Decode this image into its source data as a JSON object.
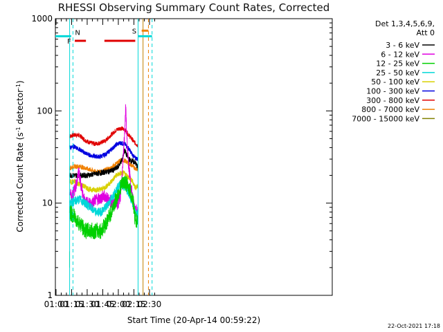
{
  "chart_data": {
    "type": "line",
    "title": "RHESSI Observing Summary Count Rates, Corrected",
    "xlabel": "Start Time (20-Apr-14 00:59:22)",
    "ylabel_parts": [
      "Corrected Count Rate (s",
      "-1",
      " detector",
      "-1",
      ")"
    ],
    "y_scale": "log",
    "ylim": [
      1,
      1000
    ],
    "y_ticks": [
      {
        "value": 1,
        "label": "1"
      },
      {
        "value": 10,
        "label": "10"
      },
      {
        "value": 100,
        "label": "100"
      },
      {
        "value": 1000,
        "label": "1000"
      }
    ],
    "xlim_minutes": [
      -0.6333,
      264.0
    ],
    "x_ticks": [
      {
        "minutes": 0,
        "label": "01:00"
      },
      {
        "minutes": 15,
        "label": "01:15"
      },
      {
        "minutes": 30,
        "label": "01:30"
      },
      {
        "minutes": 45,
        "label": "01:45"
      },
      {
        "minutes": 60,
        "label": "02:00"
      },
      {
        "minutes": 75,
        "label": "02:15"
      },
      {
        "minutes": 90,
        "label": "02:30"
      }
    ],
    "legend_header": [
      "Det 1,3,4,5,6,9,",
      "Att 0"
    ],
    "legend_position": "top-right outside plot",
    "series": [
      {
        "name": "3 - 6 keV",
        "color": "#000000",
        "x": [
          13,
          20,
          30,
          40,
          50,
          56,
          60,
          64,
          66,
          68,
          70,
          72,
          75,
          76,
          79
        ],
        "y": [
          20,
          20,
          20,
          21,
          22,
          23,
          25,
          30,
          38,
          33,
          30,
          29,
          28,
          28,
          24
        ]
      },
      {
        "name": "6 - 12 keV",
        "color": "#e000e0",
        "x": [
          13,
          15,
          18,
          20,
          22,
          24,
          26,
          28,
          30,
          34,
          38,
          42,
          46,
          50,
          55,
          60,
          62,
          64,
          66,
          67,
          68,
          69,
          70,
          72,
          74,
          76,
          79
        ],
        "y": [
          13,
          12,
          14,
          17,
          22,
          16,
          12,
          10,
          10,
          10,
          11,
          11,
          12,
          11,
          10,
          10,
          12,
          22,
          55,
          110,
          60,
          35,
          25,
          16,
          11,
          9,
          8
        ]
      },
      {
        "name": "12 - 25 keV",
        "color": "#00d000",
        "x": [
          13,
          18,
          23,
          28,
          33,
          38,
          43,
          48,
          53,
          58,
          62,
          66,
          70,
          74,
          76,
          79
        ],
        "y": [
          8,
          7,
          6,
          5,
          5,
          5,
          5,
          6,
          8,
          11,
          15,
          17,
          15,
          11,
          7,
          6
        ]
      },
      {
        "name": "25 - 50 keV",
        "color": "#00d8d8",
        "x": [
          13,
          18,
          23,
          28,
          33,
          38,
          43,
          48,
          53,
          58,
          62,
          66,
          70,
          74,
          76,
          79
        ],
        "y": [
          10,
          10.5,
          11,
          10,
          9,
          8,
          8,
          9,
          11,
          14,
          16,
          15,
          13,
          10,
          8,
          7.5
        ]
      },
      {
        "name": "50 - 100 keV",
        "color": "#d8d000",
        "x": [
          13,
          18,
          23,
          28,
          33,
          38,
          43,
          48,
          53,
          58,
          62,
          66,
          70,
          74,
          76,
          79
        ],
        "y": [
          17,
          17,
          16,
          15,
          14,
          14,
          14,
          15,
          17,
          20,
          21,
          21,
          19,
          17,
          15,
          15
        ]
      },
      {
        "name": "100 - 300 keV",
        "color": "#0000e0",
        "x": [
          13,
          18,
          23,
          28,
          33,
          38,
          43,
          48,
          53,
          58,
          62,
          66,
          70,
          74,
          76,
          79
        ],
        "y": [
          40,
          41,
          38,
          35,
          33,
          32,
          32,
          34,
          38,
          43,
          45,
          44,
          39,
          33,
          31,
          30
        ]
      },
      {
        "name": "300 - 800 keV",
        "color": "#e00000",
        "x": [
          13,
          18,
          23,
          28,
          33,
          38,
          43,
          48,
          53,
          58,
          62,
          66,
          70,
          74,
          76,
          79
        ],
        "y": [
          53,
          55,
          54,
          48,
          45,
          44,
          45,
          48,
          55,
          62,
          65,
          63,
          55,
          48,
          45,
          42
        ]
      },
      {
        "name": "800 - 7000 keV",
        "color": "#f08000",
        "x": [
          13,
          18,
          23,
          28,
          33,
          38,
          43,
          48,
          53,
          58,
          62,
          66,
          70,
          74,
          76,
          79
        ],
        "y": [
          24,
          25,
          25,
          24,
          23,
          22,
          22,
          23,
          24,
          27,
          29,
          29,
          27,
          25,
          24,
          23
        ]
      },
      {
        "name": "7000 - 15000 keV",
        "color": "#808000",
        "x": [],
        "y": []
      }
    ],
    "flag_labels": {
      "night": "N",
      "flare": "F",
      "saa": "S"
    },
    "flags": [
      {
        "type": "night",
        "label": "N",
        "color": "#00d8d8",
        "from": -0.6333,
        "to": 14.6,
        "log_level": 2.81
      },
      {
        "type": "night",
        "label": "N",
        "color": "#00d8d8",
        "from": 79.0,
        "to": 92.5,
        "log_level": 2.81
      },
      {
        "type": "flare",
        "label": "F",
        "color": "#e00000",
        "from": 18.1,
        "to": 28.8,
        "log_level": 2.76
      },
      {
        "type": "flare",
        "label": "F",
        "color": "#e00000",
        "from": 46.6,
        "to": 76.3,
        "log_level": 2.76
      },
      {
        "type": "saa",
        "label": "S",
        "color": "#f08000",
        "from": 82.5,
        "to": 89.0,
        "log_level": 2.87
      }
    ],
    "vlines": [
      {
        "minutes": 13.1,
        "color": "#00d8d8",
        "dash": false
      },
      {
        "minutes": 16.3,
        "color": "#00d8d8",
        "dash": true
      },
      {
        "minutes": 79.0,
        "color": "#00d8d8",
        "dash": false
      },
      {
        "minutes": 83.8,
        "color": "#c08000",
        "dash": false
      },
      {
        "minutes": 89.0,
        "color": "#f08000",
        "dash": true
      },
      {
        "minutes": 92.5,
        "color": "#00d8d8",
        "dash": true
      }
    ],
    "plot_frame": true,
    "grid": false
  },
  "footer": {
    "date_stamp": "22-Oct-2021 17:18"
  }
}
